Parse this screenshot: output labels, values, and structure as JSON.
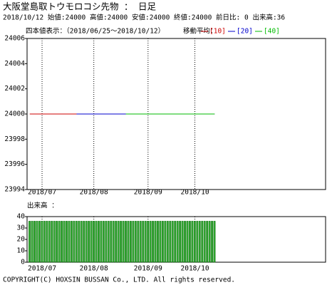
{
  "header": {
    "title": "大阪堂島取トウモロコシ先物 ： 日足",
    "quote": "2018/10/12 始値:24000 高値:24000 安値:24000 終値:24000 前日比: 0 出来高:36"
  },
  "chart_data": [
    {
      "type": "line",
      "subtitle": "四本値表示：（2018/06/25～2018/10/12）",
      "legend_title": "移動平均：",
      "categories": [
        null,
        null,
        null,
        null,
        null,
        "2018/07",
        null,
        null,
        null,
        null,
        null,
        null,
        null,
        null,
        null,
        null,
        null,
        null,
        null,
        null,
        null,
        null,
        null,
        null,
        null,
        null,
        "2018/08",
        null,
        null,
        null,
        null,
        null,
        null,
        null,
        null,
        null,
        null,
        null,
        null,
        null,
        null,
        null,
        null,
        null,
        null,
        null,
        null,
        null,
        "2018/09",
        null,
        null,
        null,
        null,
        null,
        null,
        null,
        null,
        null,
        null,
        null,
        null,
        null,
        null,
        null,
        null,
        null,
        null,
        "2018/10",
        null,
        null,
        null,
        null,
        null,
        null,
        null,
        null
      ],
      "ylim": [
        23994,
        24006
      ],
      "yticks": [
        23994,
        23996,
        23998,
        24000,
        24002,
        24004,
        24006
      ],
      "series": [
        {
          "name": "[10]",
          "color": "#cc0000",
          "values": [
            24000,
            24000,
            24000,
            24000,
            24000,
            24000,
            24000,
            24000,
            24000,
            24000,
            24000,
            24000,
            24000,
            24000,
            24000,
            24000,
            24000,
            24000,
            24000,
            24000,
            24000,
            24000,
            24000,
            24000,
            24000,
            24000,
            24000,
            24000,
            24000,
            24000,
            24000,
            24000,
            24000,
            24000,
            24000,
            24000,
            24000,
            24000,
            24000,
            24000,
            24000,
            24000,
            24000,
            24000,
            24000,
            24000,
            24000,
            24000,
            24000,
            24000,
            24000,
            24000,
            24000,
            24000,
            24000,
            24000,
            24000,
            24000,
            24000,
            24000,
            24000,
            24000,
            24000,
            24000,
            24000,
            24000,
            24000,
            24000,
            24000,
            24000,
            24000,
            24000,
            24000,
            24000,
            24000,
            24000
          ]
        },
        {
          "name": "[20]",
          "color": "#0000cc",
          "values": [
            null,
            null,
            null,
            null,
            null,
            null,
            null,
            null,
            null,
            null,
            null,
            null,
            null,
            null,
            null,
            null,
            null,
            null,
            null,
            24000,
            24000,
            24000,
            24000,
            24000,
            24000,
            24000,
            24000,
            24000,
            24000,
            24000,
            24000,
            24000,
            24000,
            24000,
            24000,
            24000,
            24000,
            24000,
            24000,
            24000,
            24000,
            24000,
            24000,
            24000,
            24000,
            24000,
            24000,
            24000,
            24000,
            24000,
            24000,
            24000,
            24000,
            24000,
            24000,
            24000,
            24000,
            24000,
            24000,
            24000,
            24000,
            24000,
            24000,
            24000,
            24000,
            24000,
            24000,
            24000,
            24000,
            24000,
            24000,
            24000,
            24000,
            24000,
            24000,
            24000
          ]
        },
        {
          "name": "[40]",
          "color": "#00bb00",
          "values": [
            null,
            null,
            null,
            null,
            null,
            null,
            null,
            null,
            null,
            null,
            null,
            null,
            null,
            null,
            null,
            null,
            null,
            null,
            null,
            null,
            null,
            null,
            null,
            null,
            null,
            null,
            null,
            null,
            null,
            null,
            null,
            null,
            null,
            null,
            null,
            null,
            null,
            null,
            null,
            24000,
            24000,
            24000,
            24000,
            24000,
            24000,
            24000,
            24000,
            24000,
            24000,
            24000,
            24000,
            24000,
            24000,
            24000,
            24000,
            24000,
            24000,
            24000,
            24000,
            24000,
            24000,
            24000,
            24000,
            24000,
            24000,
            24000,
            24000,
            24000,
            24000,
            24000,
            24000,
            24000,
            24000,
            24000,
            24000,
            24000
          ]
        }
      ]
    },
    {
      "type": "bar",
      "title": "出来高 ：",
      "categories": [
        null,
        null,
        null,
        null,
        null,
        "2018/07",
        null,
        null,
        null,
        null,
        null,
        null,
        null,
        null,
        null,
        null,
        null,
        null,
        null,
        null,
        null,
        null,
        null,
        null,
        null,
        null,
        "2018/08",
        null,
        null,
        null,
        null,
        null,
        null,
        null,
        null,
        null,
        null,
        null,
        null,
        null,
        null,
        null,
        null,
        null,
        null,
        null,
        null,
        null,
        "2018/09",
        null,
        null,
        null,
        null,
        null,
        null,
        null,
        null,
        null,
        null,
        null,
        null,
        null,
        null,
        null,
        null,
        null,
        null,
        "2018/10",
        null,
        null,
        null,
        null,
        null,
        null,
        null,
        null
      ],
      "ylim": [
        0,
        40
      ],
      "yticks": [
        0,
        10,
        20,
        30,
        40
      ],
      "color": "#33aa33",
      "values": [
        36,
        36,
        36,
        36,
        36,
        36,
        36,
        36,
        36,
        36,
        36,
        36,
        36,
        36,
        36,
        36,
        36,
        36,
        36,
        36,
        36,
        36,
        36,
        36,
        36,
        36,
        36,
        36,
        36,
        36,
        36,
        36,
        36,
        36,
        36,
        36,
        36,
        36,
        36,
        36,
        36,
        36,
        36,
        36,
        36,
        36,
        36,
        36,
        36,
        36,
        36,
        36,
        36,
        36,
        36,
        36,
        36,
        36,
        36,
        36,
        36,
        36,
        36,
        36,
        36,
        36,
        36,
        36,
        36,
        36,
        36,
        36,
        36,
        36,
        36,
        36
      ]
    }
  ],
  "copyright": "COPYRIGHT(C) HOXSIN BUSSAN Co., LTD. All rights reserved."
}
